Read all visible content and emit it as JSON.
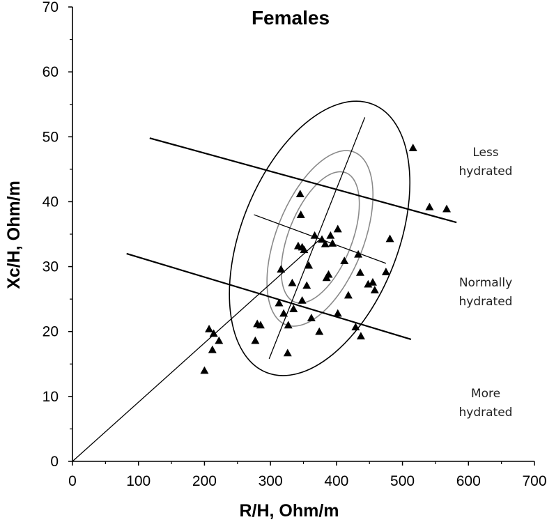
{
  "chart_data": {
    "type": "scatter",
    "title": "Females",
    "xlabel": "R/H, Ohm/m",
    "ylabel": "Xc/H, Ohm/m",
    "xlim": [
      0,
      700
    ],
    "ylim": [
      0,
      70
    ],
    "xticks": [
      0,
      100,
      200,
      300,
      400,
      500,
      600,
      700
    ],
    "yticks": [
      0,
      10,
      20,
      30,
      40,
      50,
      60,
      70
    ],
    "grid": false,
    "zone_labels": [
      {
        "lines": [
          "Less",
          "hydrated"
        ]
      },
      {
        "lines": [
          "Normally",
          "hydrated"
        ]
      },
      {
        "lines": [
          "More",
          "hydrated"
        ]
      }
    ],
    "mean_vector": {
      "from": [
        0,
        0
      ],
      "to": [
        375,
        34.2
      ]
    },
    "major_axis": {
      "from": [
        298,
        15.8
      ],
      "to": [
        443,
        53
      ]
    },
    "reference_lines": [
      {
        "name": "upper",
        "from": [
          117,
          49.8
        ],
        "to": [
          582,
          36.8
        ]
      },
      {
        "name": "middle",
        "from": [
          275,
          38
        ],
        "to": [
          475,
          30.5
        ]
      },
      {
        "name": "lower",
        "from": [
          82,
          32
        ],
        "to": [
          513,
          18.8
        ]
      }
    ],
    "tolerance_ellipses": [
      {
        "percentile": 50,
        "x_range": [
          326,
          425
        ],
        "y_range": [
          24.8,
          44.2
        ]
      },
      {
        "percentile": 75,
        "x_range": [
          307,
          443
        ],
        "y_range": [
          21.5,
          47.2
        ]
      },
      {
        "percentile": 95,
        "x_range": [
          252,
          497
        ],
        "y_range": [
          15.4,
          53.3
        ]
      }
    ],
    "points": [
      [
        200,
        14
      ],
      [
        207,
        20.4
      ],
      [
        212,
        17.2
      ],
      [
        214,
        19.7
      ],
      [
        222,
        18.6
      ],
      [
        277,
        18.6
      ],
      [
        280,
        21.2
      ],
      [
        285,
        21
      ],
      [
        316,
        29.6
      ],
      [
        313,
        24.4
      ],
      [
        320,
        22.8
      ],
      [
        326,
        16.7
      ],
      [
        327,
        21
      ],
      [
        333,
        27.5
      ],
      [
        335,
        23.5
      ],
      [
        342,
        33.2
      ],
      [
        345,
        41.2
      ],
      [
        346,
        38
      ],
      [
        348,
        24.8
      ],
      [
        348,
        33
      ],
      [
        351,
        32.6
      ],
      [
        355,
        27.1
      ],
      [
        358,
        30.2
      ],
      [
        362,
        22.1
      ],
      [
        367,
        34.8
      ],
      [
        374,
        20
      ],
      [
        378,
        34.2
      ],
      [
        383,
        33.5
      ],
      [
        385,
        28.3
      ],
      [
        388,
        28.8
      ],
      [
        391,
        34.8
      ],
      [
        394,
        33.6
      ],
      [
        402,
        35.8
      ],
      [
        402,
        22.8
      ],
      [
        412,
        30.9
      ],
      [
        418,
        25.6
      ],
      [
        429,
        20.7
      ],
      [
        433,
        31.9
      ],
      [
        436,
        29.1
      ],
      [
        437,
        19.3
      ],
      [
        448,
        27.3
      ],
      [
        455,
        27.6
      ],
      [
        458,
        26.4
      ],
      [
        475,
        29.2
      ],
      [
        481,
        34.3
      ],
      [
        516,
        48.3
      ],
      [
        541,
        39.2
      ],
      [
        567,
        38.9
      ]
    ]
  }
}
